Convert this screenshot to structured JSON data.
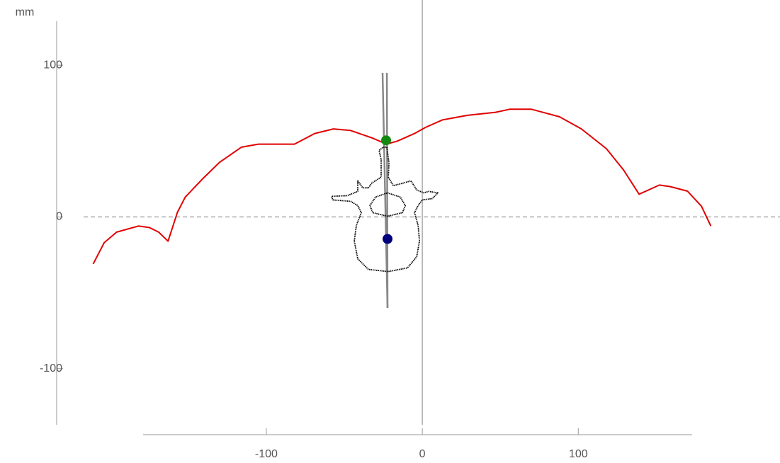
{
  "chart_data": {
    "type": "line",
    "y_label": "mm",
    "xlim": [
      -179,
      173
    ],
    "ylim": [
      -137,
      129
    ],
    "xticks": [
      -100,
      0,
      100
    ],
    "yticks": [
      -100,
      0,
      100
    ],
    "zero_lines": true,
    "series": [
      {
        "color": "#e00000",
        "width": 2,
        "dash": "none",
        "x": [
          -211,
          -204,
          -196,
          -182,
          -175,
          -169,
          -163,
          -157,
          -152,
          -141,
          -130,
          -116,
          -105,
          -82,
          -69,
          -57,
          -46,
          -32,
          -23,
          -16,
          -5,
          2,
          13,
          29,
          47,
          56,
          70,
          88,
          102,
          118,
          129,
          139,
          152,
          159,
          170,
          179,
          185
        ],
        "y": [
          -31,
          -17,
          -10,
          -6,
          -7,
          -10,
          -16,
          3,
          13,
          25,
          36,
          46,
          48,
          48,
          55,
          58,
          57,
          52,
          48,
          50,
          55,
          59,
          64,
          67,
          69,
          71,
          71,
          66,
          58,
          45,
          31,
          15,
          21,
          20,
          17,
          7,
          -6
        ]
      },
      {
        "color": "#888888",
        "width": 2.5,
        "dash": "none",
        "x": [
          -25.5,
          -22.3
        ],
        "y": [
          95,
          -60
        ]
      },
      {
        "color": "#888888",
        "width": 2.5,
        "dash": "none",
        "x": [
          -22.7,
          -22.3
        ],
        "y": [
          95,
          -60
        ]
      },
      {
        "color": "#000000",
        "width": 1.8,
        "dash": "1.5 1",
        "x": [
          -25,
          -22.7,
          -21.4,
          -21.8,
          -18.6,
          -11.8,
          -7.3,
          -3.6,
          0.9,
          4.1,
          10,
          6.4,
          0,
          -2.7,
          -5,
          -2.7,
          -1.8,
          -3.6,
          -9.5,
          -21.8,
          -34.5,
          -41.4,
          -43.6,
          -42.3,
          -39.1,
          -41.4,
          -45.9,
          -57.3,
          -58.2,
          -48.2,
          -41.4,
          -41.4,
          -38.2,
          -34.5,
          -32.3,
          -26.4,
          -26.4,
          -27.7,
          -25
        ],
        "y": [
          46,
          46,
          35.5,
          26.2,
          20.6,
          22.4,
          23.8,
          17.8,
          15.9,
          16.8,
          15.9,
          12.1,
          11.2,
          7.5,
          2.8,
          -5.6,
          -15.9,
          -26.2,
          -33.6,
          -36,
          -34.6,
          -27.6,
          -15.9,
          -5.6,
          2.8,
          7.5,
          10.3,
          11.2,
          13.6,
          14,
          16.8,
          23.8,
          19.2,
          19.2,
          22.4,
          26.2,
          37.9,
          43.9,
          46
        ]
      },
      {
        "color": "#000000",
        "width": 1.8,
        "dash": "1.5 1",
        "x": [
          -22.3,
          -14.1,
          -10.9,
          -12.7,
          -22.3,
          -31.8,
          -33.6,
          -30,
          -22.3
        ],
        "y": [
          15.9,
          13.1,
          7.5,
          2.8,
          0.5,
          2.8,
          7.5,
          13.1,
          15.9
        ]
      }
    ],
    "points": [
      {
        "x": -23.2,
        "y": 50.5,
        "color": "#128a12"
      },
      {
        "x": -22.3,
        "y": -14.5,
        "color": "#00007f"
      }
    ]
  }
}
